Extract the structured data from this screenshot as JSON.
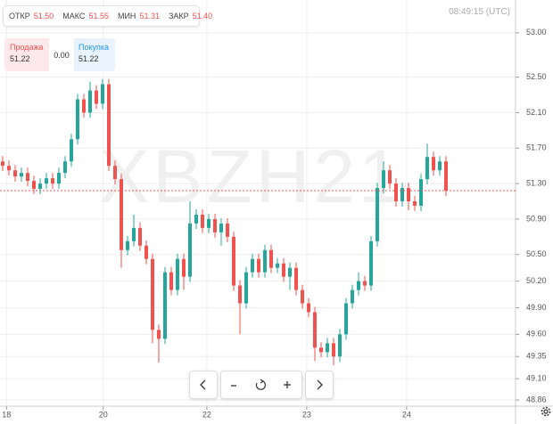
{
  "header": {
    "ohlc": [
      {
        "label": "ОТКР",
        "value": "51.50"
      },
      {
        "label": "МАКС",
        "value": "51.55"
      },
      {
        "label": "МИН",
        "value": "51.31"
      },
      {
        "label": "ЗАКР",
        "value": "51.40"
      }
    ],
    "time": "08:49:15 (UTC)",
    "sell": {
      "label": "Продажа",
      "value": "51.22"
    },
    "spread": "0.00",
    "buy": {
      "label": "Покупка",
      "value": "51.22"
    }
  },
  "chart_data": {
    "type": "candlestick",
    "watermark": "XBZH21",
    "up_color": "#26a69a",
    "down_color": "#ef5350",
    "grid": true,
    "x": [
      0,
      1,
      2,
      3,
      4,
      5,
      6,
      7,
      8,
      9,
      10,
      11,
      12,
      13,
      14,
      15,
      16,
      17,
      18,
      19,
      20,
      21,
      22,
      23,
      24,
      25,
      26,
      27,
      28,
      29,
      30,
      31,
      32,
      33,
      34,
      35,
      36,
      37,
      38,
      39,
      40,
      41,
      42,
      43,
      44,
      45,
      46,
      47,
      48,
      49,
      50,
      51,
      52,
      53,
      54,
      55,
      56,
      57,
      58,
      59,
      60,
      61,
      62,
      63,
      64,
      65,
      66,
      67,
      68,
      69,
      70,
      71
    ],
    "open": [
      51.55,
      51.5,
      51.45,
      51.38,
      51.42,
      51.33,
      51.24,
      51.3,
      51.36,
      51.3,
      51.42,
      51.55,
      51.8,
      52.25,
      52.1,
      52.35,
      52.2,
      52.42,
      51.5,
      51.35,
      50.55,
      50.65,
      50.8,
      50.6,
      50.45,
      49.65,
      49.55,
      50.3,
      50.1,
      50.45,
      50.25,
      50.85,
      50.95,
      50.8,
      50.9,
      50.75,
      50.85,
      50.7,
      50.15,
      49.95,
      50.3,
      50.45,
      50.3,
      50.55,
      50.35,
      50.4,
      50.25,
      50.35,
      50.1,
      49.95,
      49.85,
      49.45,
      49.4,
      49.5,
      49.35,
      49.6,
      49.95,
      50.1,
      50.2,
      50.15,
      50.65,
      51.25,
      51.45,
      51.3,
      51.1,
      51.25,
      51.1,
      51.05,
      51.35,
      51.6,
      51.45,
      51.55
    ],
    "high": [
      51.61,
      51.56,
      51.51,
      51.48,
      51.48,
      51.39,
      51.36,
      51.42,
      51.42,
      51.48,
      51.61,
      51.86,
      52.31,
      52.31,
      52.45,
      52.41,
      52.48,
      52.48,
      51.56,
      51.41,
      50.71,
      50.95,
      50.86,
      50.66,
      50.51,
      49.71,
      50.36,
      50.36,
      50.51,
      50.51,
      51.1,
      51.01,
      51.01,
      50.96,
      50.96,
      50.91,
      50.91,
      50.76,
      50.21,
      50.36,
      50.51,
      50.51,
      50.61,
      50.61,
      50.46,
      50.46,
      50.41,
      50.41,
      50.16,
      50.01,
      49.91,
      49.51,
      49.56,
      49.56,
      49.66,
      50.01,
      50.16,
      50.3,
      50.26,
      50.71,
      51.31,
      51.55,
      51.51,
      51.36,
      51.31,
      51.31,
      51.16,
      51.41,
      51.75,
      51.66,
      51.61,
      51.61
    ],
    "low": [
      51.44,
      51.39,
      51.32,
      51.32,
      51.27,
      51.18,
      51.18,
      51.24,
      51.24,
      51.24,
      51.36,
      51.49,
      51.74,
      52.04,
      52.04,
      52.14,
      52.14,
      51.44,
      51.29,
      50.35,
      50.49,
      50.59,
      50.54,
      50.39,
      49.5,
      49.28,
      49.49,
      50.04,
      50.04,
      50.1,
      50.19,
      50.79,
      50.74,
      50.74,
      50.69,
      50.6,
      50.64,
      50.09,
      49.6,
      49.89,
      50.24,
      50.24,
      50.24,
      50.29,
      50.29,
      50.19,
      50.1,
      50.04,
      49.89,
      49.79,
      49.3,
      49.34,
      49.34,
      49.25,
      49.29,
      49.54,
      49.89,
      50.04,
      50.09,
      50.09,
      50.59,
      51.19,
      51.24,
      51.04,
      51.04,
      51.0,
      50.99,
      50.99,
      51.29,
      51.39,
      51.39,
      51.16
    ],
    "close": [
      51.5,
      51.45,
      51.38,
      51.42,
      51.33,
      51.24,
      51.3,
      51.36,
      51.3,
      51.42,
      51.55,
      51.8,
      52.25,
      52.1,
      52.35,
      52.2,
      52.42,
      51.5,
      51.35,
      50.55,
      50.65,
      50.8,
      50.6,
      50.45,
      49.65,
      49.55,
      50.3,
      50.1,
      50.45,
      50.25,
      50.85,
      50.95,
      50.8,
      50.9,
      50.75,
      50.85,
      50.7,
      50.15,
      49.95,
      50.3,
      50.45,
      50.3,
      50.55,
      50.35,
      50.4,
      50.25,
      50.35,
      50.1,
      49.95,
      49.85,
      49.45,
      49.4,
      49.5,
      49.35,
      49.6,
      49.95,
      50.1,
      50.2,
      50.15,
      50.65,
      51.25,
      51.45,
      51.3,
      51.1,
      51.25,
      51.1,
      51.05,
      51.35,
      51.6,
      51.45,
      51.55,
      51.22
    ],
    "last_price": 51.22,
    "last_price_color": "#ef5350",
    "xlim": [
      -0.43,
      82.14
    ],
    "xticks": [
      {
        "value": 0.6,
        "label": "18"
      },
      {
        "value": 16.1,
        "label": "20"
      },
      {
        "value": 32.7,
        "label": "22"
      },
      {
        "value": 48.7,
        "label": "23"
      },
      {
        "value": 64.7,
        "label": "24"
      }
    ],
    "ylim": [
      48.79,
      53.37
    ],
    "yticks": [
      {
        "value": 53,
        "label": "53.00"
      },
      {
        "value": 52.5,
        "label": "52.50"
      },
      {
        "value": 52.1,
        "label": "52.10"
      },
      {
        "value": 51.7,
        "label": "51.70"
      },
      {
        "value": 51.3,
        "label": "51.30"
      },
      {
        "value": 50.9,
        "label": "50.90"
      },
      {
        "value": 50.5,
        "label": "50.50"
      },
      {
        "value": 50.2,
        "label": "50.20"
      },
      {
        "value": 49.9,
        "label": "49.90"
      },
      {
        "value": 49.6,
        "label": "49.60"
      },
      {
        "value": 49.35,
        "label": "49.35"
      },
      {
        "value": 49.1,
        "label": "49.10"
      },
      {
        "value": 48.86,
        "label": "48.86"
      }
    ]
  }
}
